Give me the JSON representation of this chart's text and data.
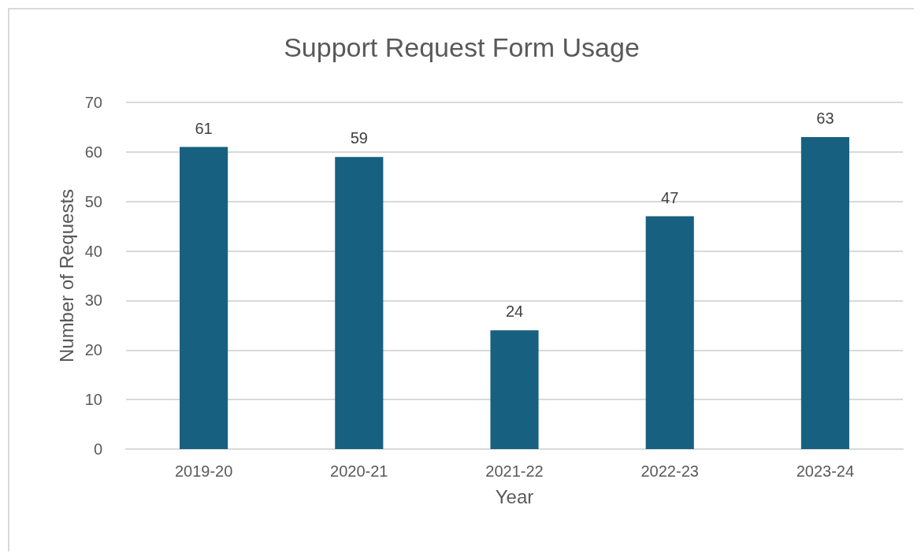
{
  "chart_data": {
    "type": "bar",
    "title": "Support Request Form Usage",
    "xlabel": "Year",
    "ylabel": "Number of Requests",
    "categories": [
      "2019-20",
      "2020-21",
      "2021-22",
      "2022-23",
      "2023-24"
    ],
    "values": [
      61,
      59,
      24,
      47,
      63
    ],
    "color": "#17607f",
    "ylim": [
      0,
      70
    ],
    "yticks": [
      0,
      10,
      20,
      30,
      40,
      50,
      60,
      70
    ],
    "grid": "y",
    "data_labels": true
  }
}
